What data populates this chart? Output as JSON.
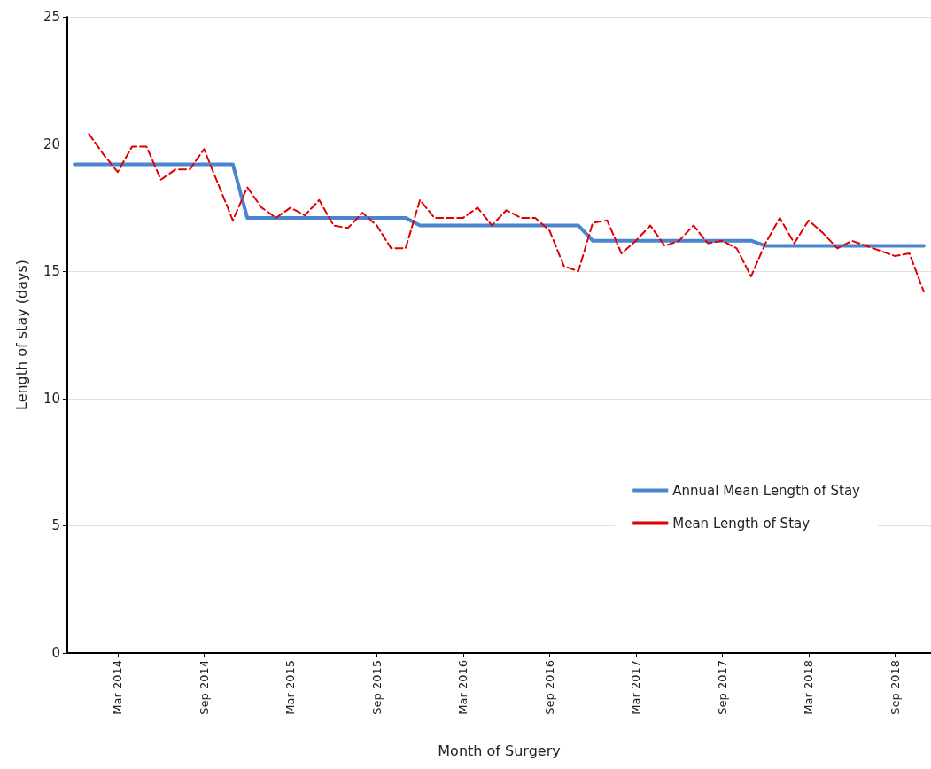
{
  "chart_data": {
    "type": "line",
    "xlabel": "Month of Surgery",
    "ylabel": "Length of stay (days)",
    "categories": [
      null,
      null,
      null,
      "Mar 2014",
      null,
      null,
      null,
      null,
      null,
      "Sep 2014",
      null,
      null,
      null,
      null,
      null,
      "Mar 2015",
      null,
      null,
      null,
      null,
      null,
      "Sep 2015",
      null,
      null,
      null,
      null,
      null,
      "Mar 2016",
      null,
      null,
      null,
      null,
      null,
      "Sep 2016",
      null,
      null,
      null,
      null,
      null,
      "Mar 2017",
      null,
      null,
      null,
      null,
      null,
      "Sep 2017",
      null,
      null,
      null,
      null,
      null,
      "Mar 2018",
      null,
      null,
      null,
      null,
      null,
      "Sep 2018",
      null,
      null
    ],
    "series": [
      {
        "name": "Annual Mean Length of Stay",
        "color": "#4a86cf",
        "line_style": "solid",
        "values": [
          19.2,
          19.2,
          19.2,
          19.2,
          19.2,
          19.2,
          19.2,
          19.2,
          19.2,
          19.2,
          19.2,
          19.2,
          17.1,
          17.1,
          17.1,
          17.1,
          17.1,
          17.1,
          17.1,
          17.1,
          17.1,
          17.1,
          17.1,
          17.1,
          16.8,
          16.8,
          16.8,
          16.8,
          16.8,
          16.8,
          16.8,
          16.8,
          16.8,
          16.8,
          16.8,
          16.8,
          16.2,
          16.2,
          16.2,
          16.2,
          16.2,
          16.2,
          16.2,
          16.2,
          16.2,
          16.2,
          16.2,
          16.2,
          16.0,
          16.0,
          16.0,
          16.0,
          16.0,
          16.0,
          16.0,
          16.0,
          16.0,
          16.0,
          16.0,
          16.0
        ]
      },
      {
        "name": "Mean Length of Stay",
        "color": "#e00000",
        "line_style": "dashed",
        "values": [
          null,
          20.4,
          19.6,
          18.9,
          19.9,
          19.9,
          18.6,
          19.0,
          19.0,
          19.8,
          18.4,
          17.0,
          18.3,
          17.5,
          17.1,
          17.5,
          17.2,
          17.8,
          16.8,
          16.7,
          17.3,
          16.8,
          15.9,
          15.9,
          17.8,
          17.1,
          17.1,
          17.1,
          17.5,
          16.8,
          17.4,
          17.1,
          17.1,
          16.6,
          15.2,
          15.0,
          16.9,
          17.0,
          15.7,
          16.2,
          16.8,
          16.0,
          16.2,
          16.8,
          16.1,
          16.2,
          15.9,
          14.8,
          16.1,
          17.1,
          16.1,
          17.0,
          16.5,
          15.9,
          16.2,
          16.0,
          15.8,
          15.6,
          15.7,
          14.2
        ]
      }
    ],
    "ylim": [
      0,
      25
    ],
    "yticks": [
      0,
      5,
      10,
      15,
      20,
      25
    ],
    "grid": "y",
    "legend": "right",
    "marker": "none"
  }
}
